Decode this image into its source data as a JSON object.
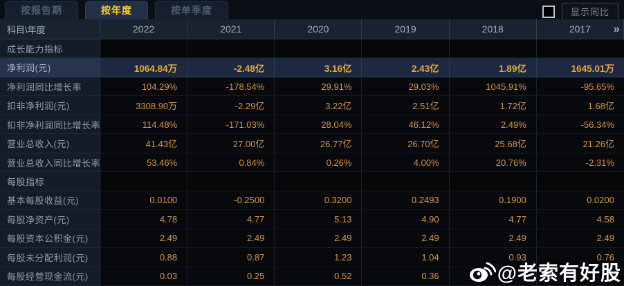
{
  "tabs": [
    {
      "label": "按报告期",
      "active": false
    },
    {
      "label": "按年度",
      "active": true
    },
    {
      "label": "按单季度",
      "active": false
    }
  ],
  "controls": {
    "show_yoy_label": "显示同比",
    "checkbox_checked": false
  },
  "table": {
    "corner_label": "科目\\年度",
    "years": [
      "2022",
      "2021",
      "2020",
      "2019",
      "2018",
      "2017"
    ],
    "more_icon": "»",
    "rows": [
      {
        "type": "section",
        "label": "成长能力指标",
        "values": [
          "",
          "",
          "",
          "",
          "",
          ""
        ]
      },
      {
        "type": "highlight",
        "label": "净利润(元)",
        "values": [
          "1064.84万",
          "-2.48亿",
          "3.16亿",
          "2.43亿",
          "1.89亿",
          "1645.01万"
        ]
      },
      {
        "type": "normal",
        "label": "净利润同比增长率",
        "values": [
          "104.29%",
          "-178.54%",
          "29.91%",
          "29.03%",
          "1045.91%",
          "-95.65%"
        ]
      },
      {
        "type": "normal",
        "label": "扣非净利润(元)",
        "values": [
          "3308.90万",
          "-2.29亿",
          "3.22亿",
          "2.51亿",
          "1.72亿",
          "1.68亿"
        ]
      },
      {
        "type": "normal",
        "label": "扣非净利润同比增长率",
        "values": [
          "114.48%",
          "-171.03%",
          "28.04%",
          "46.12%",
          "2.49%",
          "-56.34%"
        ]
      },
      {
        "type": "normal",
        "label": "营业总收入(元)",
        "values": [
          "41.43亿",
          "27.00亿",
          "26.77亿",
          "26.70亿",
          "25.68亿",
          "21.26亿"
        ]
      },
      {
        "type": "normal",
        "label": "营业总收入同比增长率",
        "values": [
          "53.46%",
          "0.84%",
          "0.26%",
          "4.00%",
          "20.76%",
          "-2.31%"
        ]
      },
      {
        "type": "section",
        "label": "每股指标",
        "values": [
          "",
          "",
          "",
          "",
          "",
          ""
        ]
      },
      {
        "type": "normal",
        "label": "基本每股收益(元)",
        "values": [
          "0.0100",
          "-0.2500",
          "0.3200",
          "0.2493",
          "0.1900",
          "0.0200"
        ]
      },
      {
        "type": "normal",
        "label": "每股净资产(元)",
        "values": [
          "4.78",
          "4.77",
          "5.13",
          "4.90",
          "4.77",
          "4.58"
        ]
      },
      {
        "type": "normal",
        "label": "每股资本公积金(元)",
        "values": [
          "2.49",
          "2.49",
          "2.49",
          "2.49",
          "2.49",
          "2.49"
        ]
      },
      {
        "type": "normal",
        "label": "每股未分配利润(元)",
        "values": [
          "0.88",
          "0.87",
          "1.23",
          "1.04",
          "0.93",
          "0.76"
        ]
      },
      {
        "type": "normal",
        "label": "每股经营现金流(元)",
        "values": [
          "0.03",
          "0.25",
          "0.52",
          "0.36",
          "",
          ""
        ]
      }
    ]
  },
  "watermark": {
    "icon": "weibo-icon",
    "text": "@老索有好股"
  },
  "colors": {
    "accent_yellow": "#ffd024",
    "value_orange": "#d6964e",
    "highlight_value": "#e8a93c",
    "highlight_row_bg": "#1d2941",
    "header_bg": "#19222f",
    "label_col_bg": "#141c28",
    "page_bg": "#05070b"
  }
}
